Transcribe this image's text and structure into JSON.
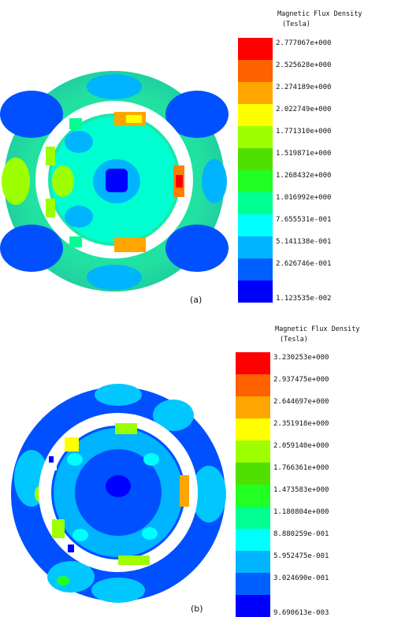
{
  "figures": [
    {
      "id": "a",
      "caption": "(a)",
      "legend": {
        "title": "Magnetic Flux Density",
        "unit": "(Tesla)",
        "ticks": [
          "2.777067e+000",
          "2.525628e+000",
          "2.274189e+000",
          "2.022749e+000",
          "1.771310e+000",
          "1.519871e+000",
          "1.268432e+000",
          "1.016992e+000",
          "7.655531e-001",
          "5.141138e-001",
          "2.626746e-001",
          "1.123535e-002"
        ],
        "colors": [
          "#ff0000",
          "#ff6000",
          "#ffa500",
          "#ffff00",
          "#9dff00",
          "#50e000",
          "#22ff22",
          "#00ff90",
          "#00ffff",
          "#00b4ff",
          "#0060ff",
          "#0000ff"
        ]
      },
      "plot": {
        "background": "#22e0a0",
        "outer_blobs": "#0040ff",
        "inner_blob": "#0000ff",
        "hot": [
          "#ff0000",
          "#ffa500",
          "#ffff00"
        ]
      }
    },
    {
      "id": "b",
      "caption": "(b)",
      "legend": {
        "title": "Magnetic Flux Density",
        "unit": "(Tesla)",
        "ticks": [
          "3.230253e+000",
          "2.937475e+000",
          "2.644697e+000",
          "2.351918e+000",
          "2.059140e+000",
          "1.766361e+000",
          "1.473583e+000",
          "1.180804e+000",
          "8.880259e-001",
          "5.952475e-001",
          "3.024690e-001",
          "9.690613e-003"
        ],
        "colors": [
          "#ff0000",
          "#ff6000",
          "#ffa500",
          "#ffff00",
          "#9dff00",
          "#50e000",
          "#22ff22",
          "#00ff90",
          "#00ffff",
          "#00b4ff",
          "#0060ff",
          "#0000ff"
        ]
      },
      "plot": {
        "background": "#0050ff",
        "outer_blobs": "#00c8ff",
        "inner_blob": "#0000ff",
        "hot": [
          "#ffa500",
          "#ffff00",
          "#9dff00"
        ]
      }
    }
  ]
}
